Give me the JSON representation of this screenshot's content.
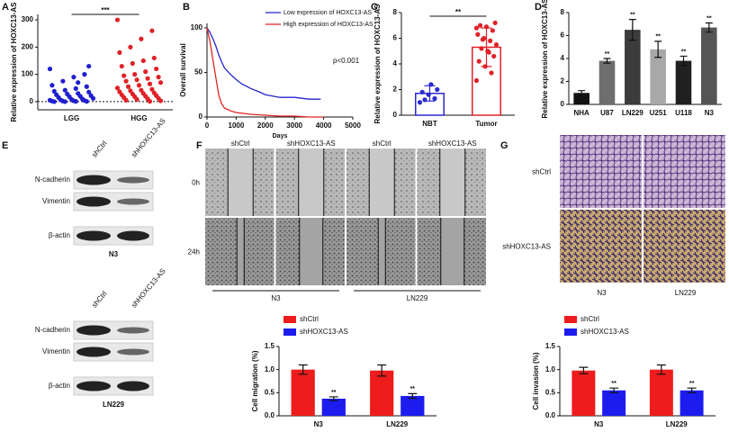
{
  "panel_labels": [
    "A",
    "B",
    "C",
    "D",
    "E",
    "F",
    "G"
  ],
  "chart_data": [
    {
      "type": "strip",
      "ylabel": "Relative expression of HOXC13-AS",
      "categories": [
        "LGG",
        "HGG"
      ],
      "series": [
        {
          "color": "#1f1fd0",
          "values": [
            120,
            100,
            90,
            75,
            60,
            55,
            48,
            42,
            38,
            35,
            30,
            28,
            25,
            22,
            20,
            18,
            15,
            12,
            10,
            8,
            6,
            5,
            4,
            3,
            2,
            2,
            1,
            1,
            0,
            0,
            130,
            70
          ]
        },
        {
          "color": "#e02228",
          "values": [
            300,
            260,
            230,
            200,
            180,
            160,
            150,
            140,
            130,
            120,
            110,
            100,
            95,
            90,
            85,
            80,
            75,
            70,
            65,
            60,
            55,
            50,
            45,
            42,
            40,
            36,
            32,
            30,
            28,
            25,
            22,
            20,
            18,
            15,
            12,
            10,
            8,
            5,
            3,
            1
          ]
        }
      ],
      "ylim": [
        -30,
        320
      ],
      "yticks": [
        0,
        100,
        200,
        300
      ],
      "reference_line": 0,
      "significance": "***"
    },
    {
      "type": "line",
      "xlabel": "Days",
      "ylabel": "Overall survival",
      "xlim": [
        0,
        5000
      ],
      "ylim": [
        0,
        105
      ],
      "xticks": [
        0,
        1000,
        2000,
        3000,
        4000,
        5000
      ],
      "yticks": [
        0,
        50,
        100
      ],
      "series": [
        {
          "name": "Low expression of HOXC13-AS",
          "color": "#2424cc",
          "x": [
            0,
            100,
            200,
            300,
            400,
            500,
            600,
            800,
            1000,
            1200,
            1500,
            1800,
            2000,
            2500,
            3000,
            3500,
            3900
          ],
          "values": [
            100,
            95,
            88,
            80,
            70,
            62,
            55,
            48,
            42,
            37,
            32,
            28,
            25,
            22,
            22,
            20,
            20
          ]
        },
        {
          "name": "High expression of HOXC13-AS",
          "color": "#e02424",
          "x": [
            0,
            100,
            200,
            300,
            400,
            500,
            600,
            800,
            1000,
            1500,
            2000,
            2500,
            3000,
            3500,
            4000
          ],
          "values": [
            100,
            85,
            65,
            45,
            25,
            15,
            10,
            7,
            5,
            3,
            2,
            1,
            1,
            0,
            0
          ]
        }
      ],
      "annotation": "p<0.001"
    },
    {
      "type": "bar_dots",
      "ylabel": "Relative expression of HOXC13-AS",
      "categories": [
        "NBT",
        "Tumor"
      ],
      "values": [
        1.7,
        5.3
      ],
      "errors": [
        0.6,
        1.5
      ],
      "colors": [
        "#2a2ad0",
        "#e02228"
      ],
      "points": [
        [
          1.0,
          1.3,
          1.6,
          1.8,
          2.0,
          2.4,
          1.2
        ],
        [
          2.7,
          3.3,
          3.8,
          4.2,
          4.6,
          5.0,
          5.2,
          5.5,
          5.8,
          6.0,
          6.3,
          6.6,
          6.9,
          7.0,
          7.2,
          4.9,
          5.9,
          6.8
        ]
      ],
      "ylim": [
        0,
        8
      ],
      "yticks": [
        0,
        2,
        4,
        6,
        8
      ],
      "significance": "**"
    },
    {
      "type": "bar",
      "ylabel": "Relative expression of HOXC13-AS",
      "categories": [
        "NHA",
        "U87",
        "LN229",
        "U251",
        "U118",
        "N3"
      ],
      "values": [
        1.0,
        3.8,
        6.5,
        4.8,
        3.8,
        6.7
      ],
      "errors": [
        0.2,
        0.2,
        0.9,
        0.7,
        0.4,
        0.4
      ],
      "colors": [
        "#111111",
        "#6e6e6e",
        "#3c3c3c",
        "#a8a8a8",
        "#202020",
        "#555555"
      ],
      "significance": [
        null,
        "**",
        "**",
        "**",
        "**",
        "**"
      ],
      "ylim": [
        0,
        8
      ],
      "yticks": [
        0,
        2,
        4,
        6,
        8
      ]
    },
    {
      "type": "grouped_bar",
      "ylabel": "Cell migration (%)",
      "categories": [
        "N3",
        "LN229"
      ],
      "series": [
        {
          "name": "shCtrl",
          "color": "#ee1c1c",
          "values": [
            1.0,
            0.98
          ],
          "errors": [
            0.1,
            0.12
          ]
        },
        {
          "name": "shHOXC13-AS",
          "color": "#1c1cee",
          "values": [
            0.37,
            0.43
          ],
          "errors": [
            0.04,
            0.05
          ],
          "significance": [
            "**",
            "**"
          ]
        }
      ],
      "ylim": [
        0,
        1.5
      ],
      "yticks": [
        {
          "value": 0,
          "label": "0.0"
        },
        {
          "value": 0.5,
          "label": "0.5"
        },
        {
          "value": 1,
          "label": "1.0"
        },
        {
          "value": 1.5,
          "label": "1.5"
        }
      ]
    },
    {
      "type": "grouped_bar",
      "ylabel": "Cell invasion (%)",
      "categories": [
        "N3",
        "LN229"
      ],
      "series": [
        {
          "name": "shCtrl",
          "color": "#ee1c1c",
          "values": [
            0.98,
            1.0
          ],
          "errors": [
            0.07,
            0.1
          ]
        },
        {
          "name": "shHOXC13-AS",
          "color": "#1c1cee",
          "values": [
            0.55,
            0.55
          ],
          "errors": [
            0.05,
            0.05
          ],
          "significance": [
            "**",
            "**"
          ]
        }
      ],
      "ylim": [
        0,
        1.5
      ],
      "yticks": [
        {
          "value": 0,
          "label": "0.0"
        },
        {
          "value": 0.5,
          "label": "0.5"
        },
        {
          "value": 1,
          "label": "1.0"
        },
        {
          "value": 1.5,
          "label": "1.5"
        }
      ]
    }
  ],
  "western_blots": [
    {
      "columns": [
        "shCtrl",
        "shHOXC13-AS"
      ],
      "rows": [
        "N-cadherin",
        "Vimentin",
        "β-actin"
      ],
      "cell_line": "N3"
    },
    {
      "columns": [
        "shCtrl",
        "shHOXC13-AS"
      ],
      "rows": [
        "N-cadherin",
        "Vimentin",
        "β-actin"
      ],
      "cell_line": "LN229"
    }
  ],
  "wound_healing": {
    "columns": [
      "shCtrl",
      "shHOXC13-AS",
      "shCtrl",
      "shHOXC13-AS"
    ],
    "rows": [
      "0h",
      "24h"
    ],
    "groups": [
      "N3",
      "LN229"
    ]
  },
  "invasion": {
    "rows": [
      "shCtrl",
      "shHOXC13-AS"
    ],
    "columns": [
      "N3",
      "LN229"
    ]
  }
}
